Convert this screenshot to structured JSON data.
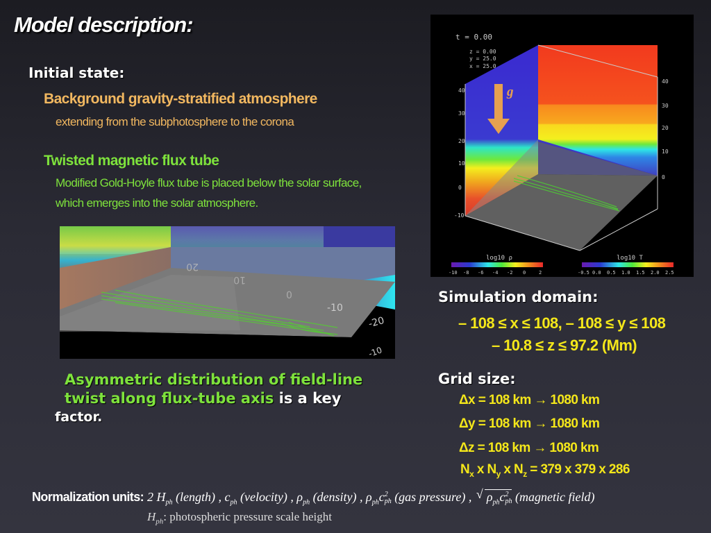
{
  "slide": {
    "title": "Model description:",
    "initial_state": {
      "heading": "Initial state:",
      "item1_title": "Background gravity-stratified atmosphere",
      "item1_desc": "extending from the subphotosphere to the corona",
      "item2_title": "Twisted magnetic flux tube",
      "item2_desc_line1": "Modified Gold-Hoyle flux tube is placed below the solar surface,",
      "item2_desc_line2": "which emerges into the solar atmosphere."
    },
    "closeup": {
      "axis_labels": [
        "20",
        "10",
        "0",
        "-10",
        "-20",
        "-10"
      ]
    },
    "asymmetric_note": {
      "line1_green": "Asymmetric distribution of field-line",
      "line2_green": "twist along flux-tube axis",
      "line2_white": " is a key",
      "line3_white": "factor."
    },
    "sim_image": {
      "time_label": "t = 0.00",
      "coords": [
        "z = 0.00",
        "y = 25.0",
        "x = 25.0"
      ],
      "gravity_label": "g",
      "colorbar_left": {
        "label": "log10 ρ",
        "ticks": [
          "-10",
          "-8",
          "-6",
          "-4",
          "-2",
          "0",
          "2"
        ]
      },
      "colorbar_right": {
        "label": "log10 T",
        "ticks": [
          "-0.5",
          "0.0",
          "0.5",
          "1.0",
          "1.5",
          "2.0",
          "2.5"
        ]
      },
      "z_ticks": [
        "40",
        "30",
        "20",
        "10",
        "0",
        "-10"
      ],
      "right_ticks": [
        "40",
        "30",
        "20",
        "10",
        "0"
      ]
    },
    "domain": {
      "heading": "Simulation domain:",
      "line1": "– 108 ≤ x ≤ 108, – 108 ≤ y ≤ 108",
      "line2": "– 10.8 ≤ z ≤ 97.2 (Mm)"
    },
    "grid": {
      "heading": "Grid size:",
      "dx": "Δx = 108 km → 1080 km",
      "dy": "Δy = 108 km → 1080 km",
      "dz": "Δz = 108 km → 1080 km",
      "n_prefix_x": "N",
      "n_sub_x": "x",
      "n_mid_y": " x N",
      "n_sub_y": "y",
      "n_mid_z": " x N",
      "n_sub_z": "z",
      "n_value": " = 379 x 379 x 286"
    },
    "normalization": {
      "label": "Normalization units:",
      "formula_parts": [
        "2 H",
        "ph",
        " (length) , c",
        "ph",
        " (velocity) , ρ",
        "ph",
        " (density) , ρ",
        "ph",
        "c",
        "2",
        "ph",
        " (gas pressure) ,",
        "ρ",
        "ph",
        "c",
        "2",
        "ph",
        " (magnetic field)"
      ],
      "footnote_symbol": "H",
      "footnote_sub": "ph",
      "footnote_text": ": photospheric pressure scale height"
    }
  }
}
